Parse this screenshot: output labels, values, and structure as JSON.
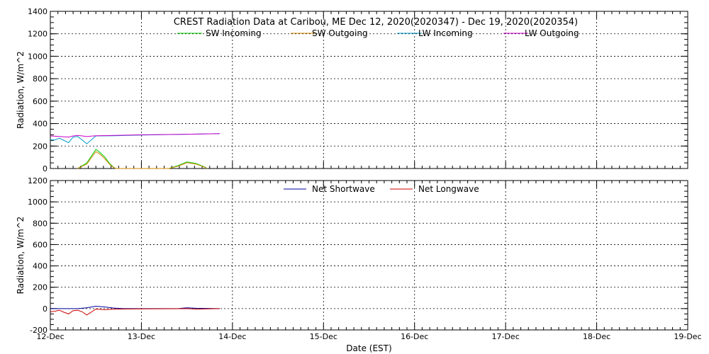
{
  "chart_data": [
    {
      "type": "line",
      "title": "CREST Radiation Data at Caribou, ME   Dec 12, 2020(2020347) - Dec 19, 2020(2020354)",
      "ylabel": "Radiation, W/m^2",
      "xlabel": "",
      "x_range": [
        12,
        19
      ],
      "ylim": [
        0,
        1400
      ],
      "yticks": [
        0,
        200,
        400,
        600,
        800,
        1000,
        1200,
        1400
      ],
      "grid": true,
      "legend_position": "top",
      "series": [
        {
          "name": "SW Incoming",
          "color": "#00cc00",
          "x": [
            12.3,
            12.4,
            12.45,
            12.5,
            12.55,
            12.6,
            12.65,
            12.7,
            12.72,
            13.3,
            13.4,
            13.5,
            13.6,
            13.7,
            13.72
          ],
          "y": [
            0,
            50,
            110,
            170,
            140,
            100,
            45,
            8,
            0,
            0,
            25,
            58,
            45,
            12,
            0
          ]
        },
        {
          "name": "SW Outgoing",
          "color": "#cc8800",
          "x": [
            12.3,
            12.4,
            12.45,
            12.5,
            12.55,
            12.6,
            12.65,
            12.7,
            12.72,
            13.3,
            13.4,
            13.5,
            13.6,
            13.7,
            13.72
          ],
          "y": [
            0,
            40,
            95,
            150,
            125,
            85,
            38,
            6,
            0,
            0,
            20,
            52,
            40,
            10,
            0
          ]
        },
        {
          "name": "LW Incoming",
          "color": "#0099cc",
          "x": [
            12.0,
            12.05,
            12.1,
            12.15,
            12.2,
            12.25,
            12.3,
            12.35,
            12.4,
            12.5,
            12.7,
            13.0,
            13.5,
            13.86
          ],
          "y": [
            255,
            255,
            270,
            250,
            230,
            280,
            285,
            255,
            220,
            290,
            292,
            298,
            305,
            310
          ]
        },
        {
          "name": "LW Outgoing",
          "color": "#cc00cc",
          "x": [
            12.0,
            12.1,
            12.2,
            12.25,
            12.3,
            12.4,
            12.5,
            12.7,
            13.0,
            13.5,
            13.86
          ],
          "y": [
            290,
            285,
            280,
            290,
            295,
            285,
            292,
            295,
            300,
            305,
            310
          ]
        }
      ]
    },
    {
      "type": "line",
      "title": "",
      "ylabel": "Radiation, W/m^2",
      "xlabel": "Date (EST)",
      "x_range": [
        12,
        19
      ],
      "xtick_labels": [
        "12-Dec",
        "13-Dec",
        "14-Dec",
        "15-Dec",
        "16-Dec",
        "17-Dec",
        "18-Dec",
        "19-Dec"
      ],
      "ylim": [
        -200,
        1200
      ],
      "yticks": [
        -200,
        0,
        200,
        400,
        600,
        800,
        1000,
        1200
      ],
      "grid": true,
      "legend_position": "top",
      "series": [
        {
          "name": "Net Shortwave",
          "color": "#000099",
          "x": [
            12.0,
            12.1,
            12.3,
            12.4,
            12.5,
            12.6,
            12.7,
            12.8,
            13.0,
            13.4,
            13.5,
            13.6,
            13.86
          ],
          "y": [
            0,
            0,
            0,
            8,
            22,
            15,
            5,
            0,
            0,
            0,
            8,
            3,
            0
          ]
        },
        {
          "name": "Net Longwave",
          "color": "#cc0000",
          "x": [
            12.0,
            12.05,
            12.1,
            12.15,
            12.2,
            12.25,
            12.3,
            12.35,
            12.4,
            12.5,
            12.6,
            12.7,
            13.0,
            13.5,
            13.6,
            13.86
          ],
          "y": [
            -30,
            -25,
            -15,
            -35,
            -50,
            -20,
            -15,
            -30,
            -60,
            -5,
            -10,
            -5,
            -2,
            0,
            -5,
            0
          ]
        }
      ]
    }
  ]
}
